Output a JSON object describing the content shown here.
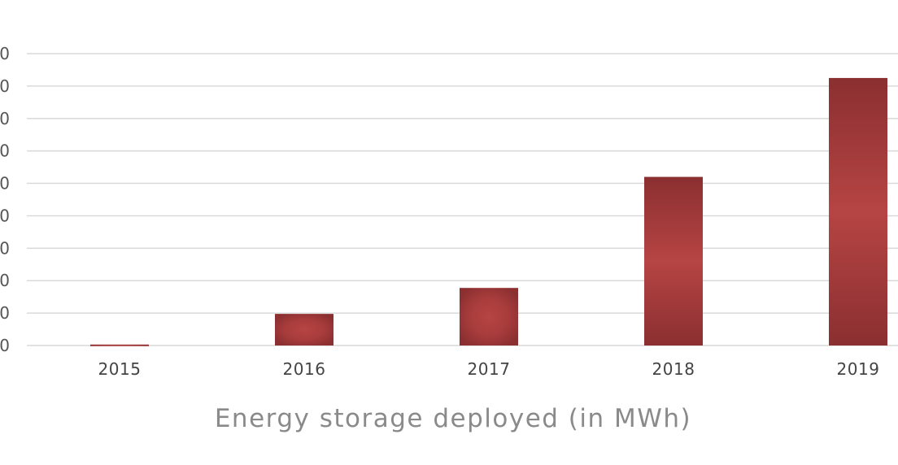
{
  "chart_data": {
    "type": "bar",
    "title": "",
    "xlabel": "Energy storage deployed (in MWh)",
    "ylabel": "",
    "categories": [
      "2015",
      "2016",
      "2017",
      "2018",
      "2019"
    ],
    "series": [
      {
        "values": [
          6,
          195,
          355,
          1040,
          1650
        ]
      }
    ],
    "ylim": [
      0,
      1800
    ],
    "ytick_step": 200,
    "ytick_labels_visible": "last character only (labels cropped at left edge)",
    "grid": true,
    "legend": "none",
    "colors": {
      "bar_edge": "#8b2f30",
      "bar_center": "#b64444",
      "grid": "#d9d9d9",
      "tick_text": "#555555",
      "axis_title_text": "#8a8a8a"
    }
  }
}
